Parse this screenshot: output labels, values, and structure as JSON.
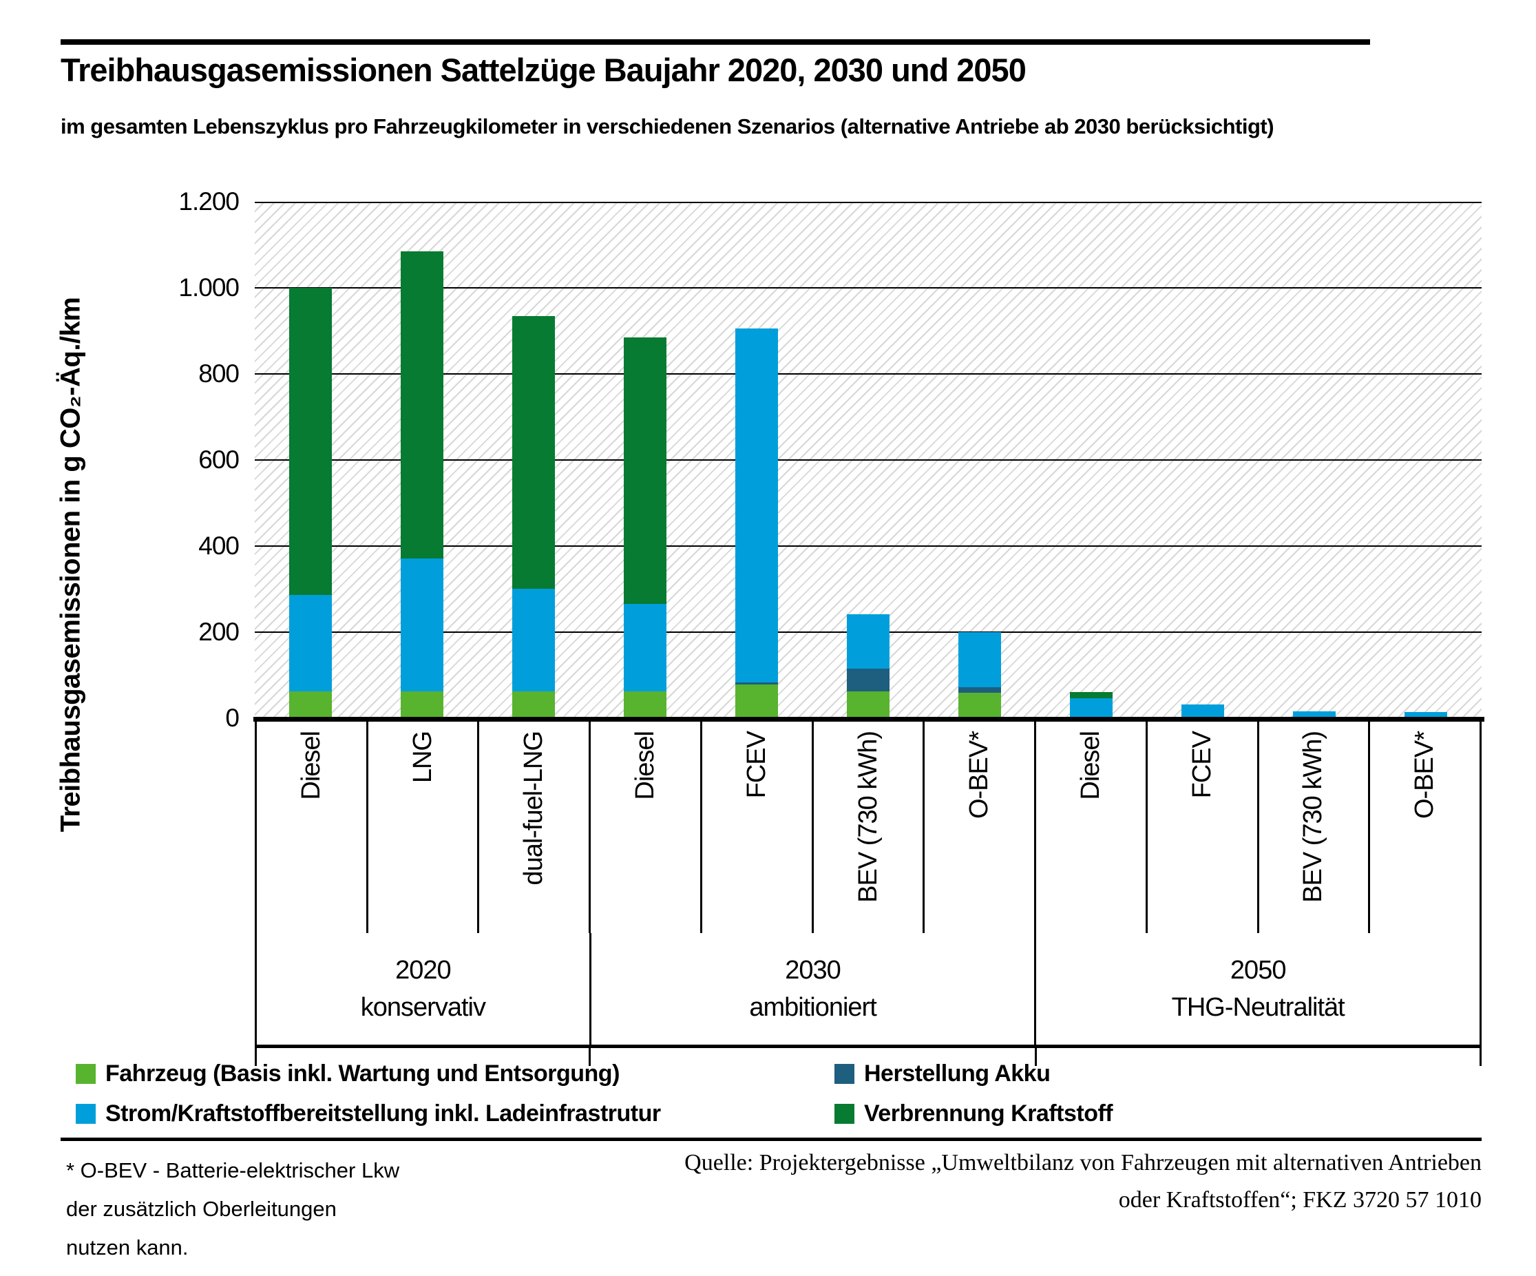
{
  "page": {
    "title": "Treibhausgasemissionen Sattelzüge Baujahr 2020, 2030 und 2050",
    "subtitle": "im gesamten Lebenszyklus pro Fahrzeugkilometer in verschiedenen Szenarios (alternative Antriebe ab 2030 berücksichtigt)"
  },
  "legend": {
    "items": [
      {
        "key": "fahrzeug",
        "label": "Fahrzeug (Basis inkl. Wartung und Entsorgung)",
        "color": "#58B32E"
      },
      {
        "key": "strom",
        "label": "Strom/Kraftstoffbereitstellung inkl. Ladeinfrastrutur",
        "color": "#009FDB"
      },
      {
        "key": "akku",
        "label": "Herstellung Akku",
        "color": "#1E5E7E"
      },
      {
        "key": "verbrennung",
        "label": "Verbrennung Kraftstoff",
        "color": "#067B31"
      }
    ]
  },
  "footnote": {
    "line1": "* O-BEV - Batterie-elektrischer Lkw",
    "line2": "der zusätzlich Oberleitungen",
    "line3": "nutzen kann."
  },
  "source": {
    "line1": "Quelle: Projektergebnisse „Umweltbilanz von Fahrzeugen mit alternativen Antrieben",
    "line2": "oder Kraftstoffen“; FKZ 3720 57 1010"
  },
  "chart_data": {
    "type": "bar",
    "stacked": true,
    "ylabel": "Treibhausgasemissionen in g CO₂-Äq./km",
    "ylim": [
      0,
      1200
    ],
    "ytick_step": 200,
    "ytick_labels": [
      "0",
      "200",
      "400",
      "600",
      "800",
      "1.000",
      "1.200"
    ],
    "grid": true,
    "legend_position": "bottom",
    "stack_order": [
      "fahrzeug",
      "akku",
      "strom",
      "verbrennung"
    ],
    "groups": [
      {
        "year": "2020",
        "scenario": "konservativ",
        "span": 3
      },
      {
        "year": "2030",
        "scenario": "ambitioniert",
        "span": 4
      },
      {
        "year": "2050",
        "scenario": "THG-Neutralität",
        "span": 4
      }
    ],
    "bars": [
      {
        "label": "Diesel",
        "group": "2020 konservativ",
        "segments": {
          "fahrzeug": 62,
          "akku": 0,
          "strom": 224,
          "verbrennung": 714
        },
        "total": 1000
      },
      {
        "label": "LNG",
        "group": "2020 konservativ",
        "segments": {
          "fahrzeug": 62,
          "akku": 0,
          "strom": 309,
          "verbrennung": 714
        },
        "total": 1085
      },
      {
        "label": "dual-fuel-LNG",
        "group": "2020 konservativ",
        "segments": {
          "fahrzeug": 62,
          "akku": 0,
          "strom": 239,
          "verbrennung": 634
        },
        "total": 935
      },
      {
        "label": "Diesel",
        "group": "2030 ambitioniert",
        "segments": {
          "fahrzeug": 62,
          "akku": 0,
          "strom": 203,
          "verbrennung": 620
        },
        "total": 885
      },
      {
        "label": "FCEV",
        "group": "2030 ambitioniert",
        "segments": {
          "fahrzeug": 78,
          "akku": 6,
          "strom": 821,
          "verbrennung": 0
        },
        "total": 905
      },
      {
        "label": "BEV (730 kWh)",
        "group": "2030 ambitioniert",
        "segments": {
          "fahrzeug": 62,
          "akku": 53,
          "strom": 127,
          "verbrennung": 0
        },
        "total": 242
      },
      {
        "label": "O-BEV*",
        "group": "2030 ambitioniert",
        "segments": {
          "fahrzeug": 60,
          "akku": 12,
          "strom": 128,
          "verbrennung": 0
        },
        "total": 200
      },
      {
        "label": "Diesel",
        "group": "2050 THG-Neutralität",
        "segments": {
          "fahrzeug": 0,
          "akku": 0,
          "strom": 46,
          "verbrennung": 15
        },
        "total": 61
      },
      {
        "label": "FCEV",
        "group": "2050 THG-Neutralität",
        "segments": {
          "fahrzeug": 0,
          "akku": 0,
          "strom": 32,
          "verbrennung": 0
        },
        "total": 32
      },
      {
        "label": "BEV (730 kWh)",
        "group": "2050 THG-Neutralität",
        "segments": {
          "fahrzeug": 0,
          "akku": 0,
          "strom": 16,
          "verbrennung": 0
        },
        "total": 16
      },
      {
        "label": "O-BEV*",
        "group": "2050 THG-Neutralität",
        "segments": {
          "fahrzeug": 0,
          "akku": 0,
          "strom": 14,
          "verbrennung": 0
        },
        "total": 14
      }
    ]
  }
}
